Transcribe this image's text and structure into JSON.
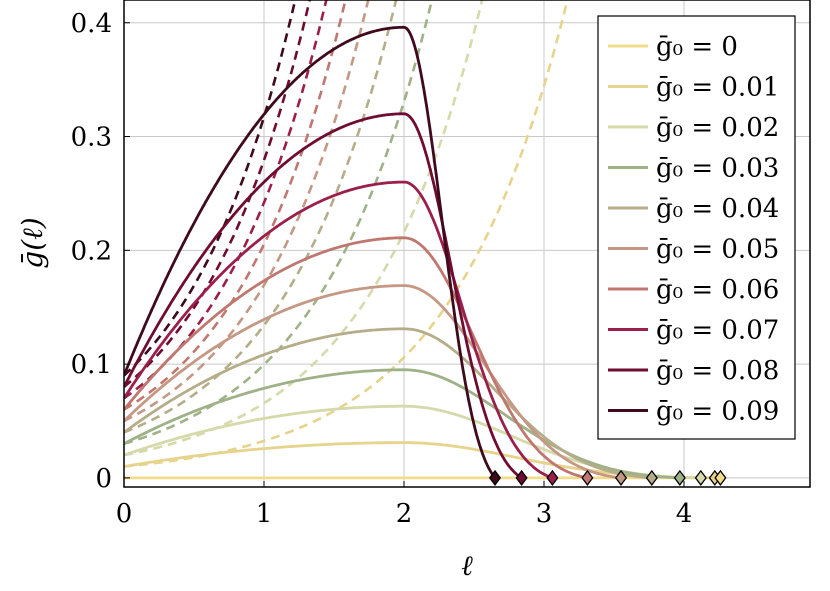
{
  "chart_data": {
    "type": "line",
    "title": "",
    "xlabel": "ℓ",
    "ylabel": "ḡ(ℓ)",
    "xlim": [
      0,
      4.9
    ],
    "ylim": [
      -0.008,
      0.42
    ],
    "xticks": [
      "0",
      "1",
      "2",
      "3",
      "4"
    ],
    "yticks": [
      "0",
      "0.1",
      "0.2",
      "0.3",
      "0.4"
    ],
    "grid": true,
    "legend_position": "top-right",
    "peak_x": 2.0,
    "series": [
      {
        "name": "ḡ₀ = 0",
        "g0": 0.0,
        "color": "#f2dc8a",
        "peak": 0.0,
        "end_x": 4.26,
        "dashed_growth": 0.0
      },
      {
        "name": "ḡ₀ = 0.01",
        "g0": 0.01,
        "color": "#e6d38c",
        "peak": 0.031,
        "end_x": 4.22,
        "dashed_growth": 1.18
      },
      {
        "name": "ḡ₀ = 0.02",
        "g0": 0.02,
        "color": "#d6d9aa",
        "peak": 0.063,
        "end_x": 4.12,
        "dashed_growth": 1.19
      },
      {
        "name": "ḡ₀ = 0.03",
        "g0": 0.03,
        "color": "#9fb287",
        "peak": 0.095,
        "end_x": 3.97,
        "dashed_growth": 1.2
      },
      {
        "name": "ḡ₀ = 0.04",
        "g0": 0.04,
        "color": "#b5ad8a",
        "peak": 0.131,
        "end_x": 3.77,
        "dashed_growth": 1.21
      },
      {
        "name": "ḡ₀ = 0.05",
        "g0": 0.05,
        "color": "#c49884",
        "peak": 0.169,
        "end_x": 3.55,
        "dashed_growth": 1.22
      },
      {
        "name": "ḡ₀ = 0.06",
        "g0": 0.06,
        "color": "#c0776f",
        "peak": 0.211,
        "end_x": 3.31,
        "dashed_growth": 1.23
      },
      {
        "name": "ḡ₀ = 0.07",
        "g0": 0.07,
        "color": "#9a1f4a",
        "peak": 0.26,
        "end_x": 3.06,
        "dashed_growth": 1.24
      },
      {
        "name": "ḡ₀ = 0.08",
        "g0": 0.08,
        "color": "#6e0c31",
        "peak": 0.32,
        "end_x": 2.84,
        "dashed_growth": 1.25
      },
      {
        "name": "ḡ₀ = 0.09",
        "g0": 0.09,
        "color": "#3e0a1c",
        "peak": 0.396,
        "end_x": 2.65,
        "dashed_growth": 1.26
      }
    ]
  }
}
